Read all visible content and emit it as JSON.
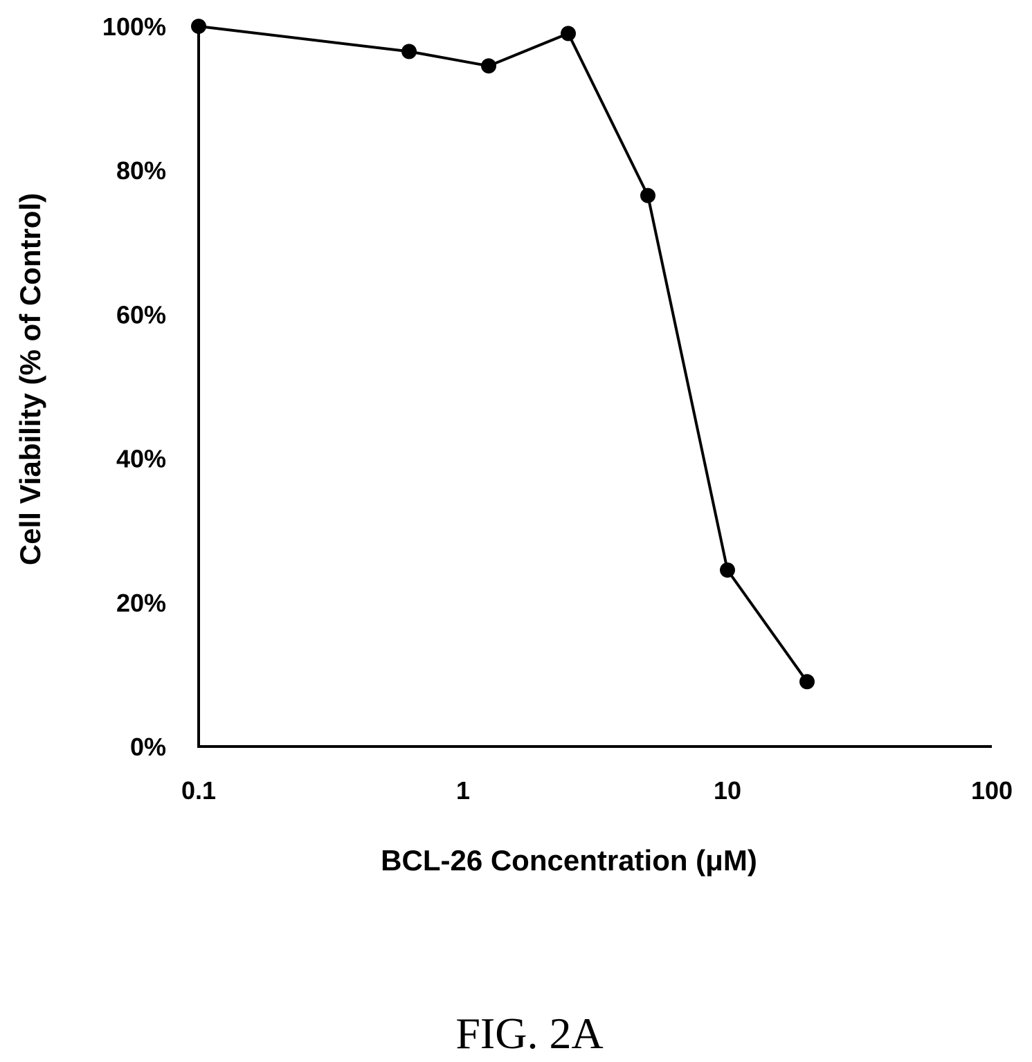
{
  "figure_label": "FIG. 2A",
  "chart_data": {
    "type": "line",
    "title": "",
    "xlabel": "BCL-26 Concentration (μM)",
    "ylabel": "Cell Viability (% of Control)",
    "x_scale": "log",
    "xlim": [
      0.1,
      100
    ],
    "ylim": [
      0,
      100
    ],
    "x_ticks": [
      "0.1",
      "1",
      "10",
      "100"
    ],
    "y_ticks": [
      "0%",
      "20%",
      "40%",
      "60%",
      "80%",
      "100%"
    ],
    "grid": false,
    "legend": "none",
    "series": [
      {
        "x": [
          0.1,
          0.625,
          1.25,
          2.5,
          5,
          10,
          20
        ],
        "y": [
          100,
          96.5,
          94.5,
          99,
          76.5,
          24.5,
          9
        ]
      }
    ],
    "color": "#000000"
  }
}
